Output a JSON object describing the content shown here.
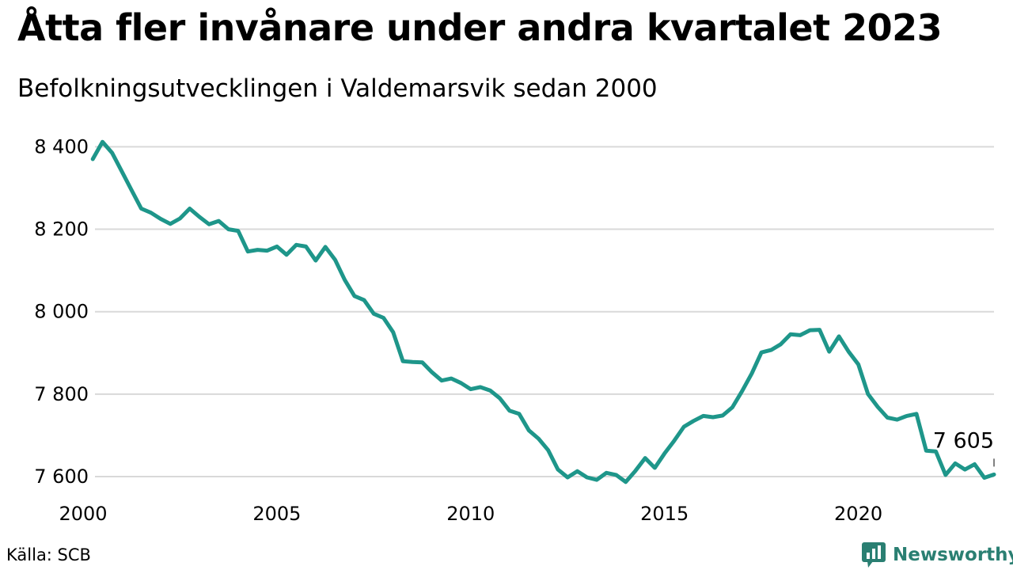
{
  "chart_data": {
    "type": "line",
    "title": "Åtta fler invånare under andra kvartalet 2023",
    "subtitle": "Befolkningsutvecklingen i Valdemarsvik sedan 2000",
    "xlabel": "",
    "ylabel": "",
    "xlim": [
      2000,
      2023.5
    ],
    "ylim": [
      7575,
      8420
    ],
    "x_ticks": [
      {
        "value": 2000,
        "label": "2000"
      },
      {
        "value": 2005,
        "label": "2005"
      },
      {
        "value": 2010,
        "label": "2010"
      },
      {
        "value": 2015,
        "label": "2015"
      },
      {
        "value": 2020,
        "label": "2020"
      }
    ],
    "y_ticks": [
      {
        "value": 7600,
        "label": "7 600"
      },
      {
        "value": 7800,
        "label": "7 800"
      },
      {
        "value": 8000,
        "label": "8 000"
      },
      {
        "value": 8200,
        "label": "8 200"
      },
      {
        "value": 8400,
        "label": "8 400"
      }
    ],
    "grid": true,
    "legend": "none",
    "line_color": "#1e968a",
    "x": [
      2000.25,
      2000.5,
      2000.75,
      2001.0,
      2001.25,
      2001.5,
      2001.75,
      2002.0,
      2002.25,
      2002.5,
      2002.75,
      2003.0,
      2003.25,
      2003.5,
      2003.75,
      2004.0,
      2004.25,
      2004.5,
      2004.75,
      2005.0,
      2005.25,
      2005.5,
      2005.75,
      2006.0,
      2006.25,
      2006.5,
      2006.75,
      2007.0,
      2007.25,
      2007.5,
      2007.75,
      2008.0,
      2008.25,
      2008.5,
      2008.75,
      2009.0,
      2009.25,
      2009.5,
      2009.75,
      2010.0,
      2010.25,
      2010.5,
      2010.75,
      2011.0,
      2011.25,
      2011.5,
      2011.75,
      2012.0,
      2012.25,
      2012.5,
      2012.75,
      2013.0,
      2013.25,
      2013.5,
      2013.75,
      2014.0,
      2014.25,
      2014.5,
      2014.75,
      2015.0,
      2015.25,
      2015.5,
      2015.75,
      2016.0,
      2016.25,
      2016.5,
      2016.75,
      2017.0,
      2017.25,
      2017.5,
      2017.75,
      2018.0,
      2018.25,
      2018.5,
      2018.75,
      2019.0,
      2019.25,
      2019.5,
      2019.75,
      2020.0,
      2020.25,
      2020.5,
      2020.75,
      2021.0,
      2021.25,
      2021.5,
      2021.75,
      2022.0,
      2022.25,
      2022.5,
      2022.75,
      2023.0,
      2023.25,
      2023.5
    ],
    "series": [
      {
        "values": [
          8370,
          8412,
          8385,
          8340,
          8295,
          8250,
          8240,
          8225,
          8213,
          8226,
          8250,
          8230,
          8212,
          8220,
          8200,
          8196,
          8146,
          8150,
          8148,
          8158,
          8138,
          8162,
          8158,
          8124,
          8157,
          8126,
          8077,
          8038,
          8028,
          7995,
          7985,
          7950,
          7880,
          7878,
          7877,
          7853,
          7833,
          7838,
          7827,
          7812,
          7817,
          7809,
          7790,
          7760,
          7752,
          7712,
          7692,
          7664,
          7617,
          7598,
          7613,
          7598,
          7592,
          7609,
          7604,
          7587,
          7614,
          7645,
          7621,
          7656,
          7687,
          7721,
          7735,
          7747,
          7744,
          7748,
          7768,
          7807,
          7850,
          7901,
          7907,
          7921,
          7945,
          7943,
          7955,
          7956,
          7903,
          7940,
          7903,
          7872,
          7800,
          7769,
          7743,
          7738,
          7747,
          7752,
          7663,
          7661,
          7604,
          7632,
          7617,
          7630,
          7597,
          7605
        ]
      }
    ],
    "annotations": [
      {
        "x": 2023.5,
        "y": 7605,
        "text": "7 605"
      }
    ],
    "source": "Källa: SCB",
    "brand": "Newsworthy"
  }
}
